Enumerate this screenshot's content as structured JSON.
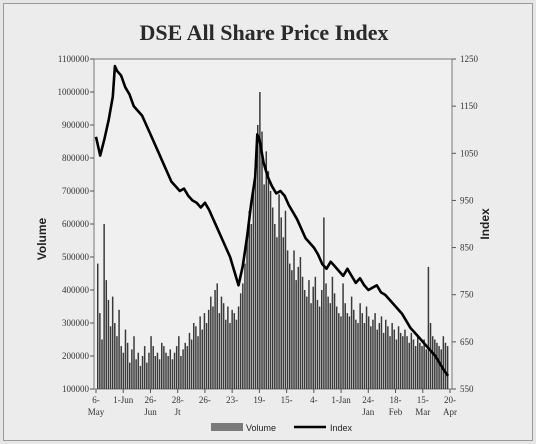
{
  "chart_data": {
    "type": "bar+line",
    "title": "DSE All Share Price Index",
    "ylabel_left": "Volume",
    "ylabel_right": "Index",
    "y_left_ticks": [
      "1100000",
      "1000000",
      "900000",
      "800000",
      "700000",
      "600000",
      "500000",
      "400000",
      "300000",
      "200000",
      "100000"
    ],
    "y_right_ticks": [
      "1250",
      "1150",
      "1050",
      "950",
      "850",
      "750",
      "650",
      "550"
    ],
    "ylim_left": [
      100000,
      1100000
    ],
    "ylim_right": [
      550,
      1250
    ],
    "x_tick_top": [
      "6-",
      "1-Jun",
      "26-",
      "28-",
      "26-",
      "23-",
      "19-",
      "15-",
      "4-",
      "1-Jan",
      "24-",
      "18-",
      "15-",
      "20-"
    ],
    "x_tick_bottom": [
      "May",
      "",
      "Jun",
      "Jt",
      "",
      "",
      "",
      "",
      "",
      "",
      "Jan",
      "Feb",
      "Mar",
      "Apr"
    ],
    "legend": [
      "Volume",
      "Index"
    ],
    "colors": {
      "volume": "#3a3a3a",
      "index": "#000000"
    },
    "index_series": [
      [
        0,
        1085
      ],
      [
        2,
        1045
      ],
      [
        4,
        1080
      ],
      [
        6,
        1120
      ],
      [
        8,
        1170
      ],
      [
        9,
        1235
      ],
      [
        10,
        1225
      ],
      [
        12,
        1215
      ],
      [
        14,
        1190
      ],
      [
        16,
        1175
      ],
      [
        18,
        1150
      ],
      [
        20,
        1140
      ],
      [
        22,
        1130
      ],
      [
        24,
        1110
      ],
      [
        26,
        1090
      ],
      [
        28,
        1070
      ],
      [
        30,
        1050
      ],
      [
        32,
        1030
      ],
      [
        34,
        1010
      ],
      [
        36,
        990
      ],
      [
        38,
        980
      ],
      [
        40,
        970
      ],
      [
        42,
        975
      ],
      [
        44,
        960
      ],
      [
        46,
        950
      ],
      [
        48,
        945
      ],
      [
        50,
        935
      ],
      [
        52,
        945
      ],
      [
        54,
        930
      ],
      [
        56,
        910
      ],
      [
        58,
        890
      ],
      [
        60,
        870
      ],
      [
        62,
        850
      ],
      [
        64,
        830
      ],
      [
        66,
        800
      ],
      [
        68,
        770
      ],
      [
        70,
        810
      ],
      [
        72,
        870
      ],
      [
        74,
        940
      ],
      [
        76,
        1000
      ],
      [
        77,
        1090
      ],
      [
        78,
        1080
      ],
      [
        80,
        1030
      ],
      [
        82,
        1000
      ],
      [
        84,
        980
      ],
      [
        86,
        965
      ],
      [
        88,
        970
      ],
      [
        90,
        960
      ],
      [
        92,
        940
      ],
      [
        94,
        925
      ],
      [
        96,
        910
      ],
      [
        98,
        890
      ],
      [
        100,
        870
      ],
      [
        102,
        860
      ],
      [
        104,
        850
      ],
      [
        106,
        835
      ],
      [
        108,
        815
      ],
      [
        110,
        805
      ],
      [
        112,
        820
      ],
      [
        114,
        810
      ],
      [
        116,
        800
      ],
      [
        118,
        790
      ],
      [
        120,
        805
      ],
      [
        122,
        790
      ],
      [
        124,
        775
      ],
      [
        126,
        785
      ],
      [
        128,
        770
      ],
      [
        130,
        760
      ],
      [
        132,
        765
      ],
      [
        134,
        770
      ],
      [
        136,
        755
      ],
      [
        138,
        750
      ],
      [
        140,
        740
      ],
      [
        142,
        730
      ],
      [
        144,
        720
      ],
      [
        146,
        710
      ],
      [
        148,
        695
      ],
      [
        150,
        680
      ],
      [
        152,
        670
      ],
      [
        154,
        660
      ],
      [
        156,
        650
      ],
      [
        158,
        640
      ],
      [
        160,
        630
      ],
      [
        162,
        620
      ],
      [
        164,
        605
      ],
      [
        166,
        590
      ],
      [
        168,
        578
      ]
    ],
    "volume_series": [
      480000,
      330000,
      250000,
      600000,
      430000,
      370000,
      290000,
      380000,
      300000,
      260000,
      340000,
      230000,
      210000,
      280000,
      240000,
      180000,
      220000,
      260000,
      190000,
      210000,
      170000,
      200000,
      230000,
      180000,
      210000,
      260000,
      230000,
      200000,
      210000,
      190000,
      240000,
      230000,
      210000,
      200000,
      220000,
      190000,
      210000,
      230000,
      260000,
      200000,
      220000,
      240000,
      230000,
      270000,
      250000,
      300000,
      290000,
      260000,
      320000,
      280000,
      330000,
      300000,
      340000,
      380000,
      350000,
      400000,
      420000,
      330000,
      380000,
      360000,
      310000,
      350000,
      300000,
      340000,
      330000,
      310000,
      350000,
      390000,
      420000,
      480000,
      560000,
      640000,
      600000,
      700000,
      780000,
      900000,
      1000000,
      880000,
      720000,
      820000,
      760000,
      700000,
      650000,
      600000,
      560000,
      690000,
      620000,
      560000,
      640000,
      520000,
      480000,
      460000,
      520000,
      430000,
      470000,
      500000,
      440000,
      400000,
      380000,
      430000,
      360000,
      410000,
      440000,
      370000,
      350000,
      400000,
      620000,
      420000,
      380000,
      360000,
      440000,
      390000,
      350000,
      330000,
      320000,
      420000,
      360000,
      330000,
      320000,
      380000,
      340000,
      310000,
      300000,
      360000,
      330000,
      300000,
      350000,
      320000,
      290000,
      310000,
      330000,
      280000,
      300000,
      320000,
      270000,
      310000,
      290000,
      260000,
      300000,
      280000,
      250000,
      290000,
      270000,
      260000,
      280000,
      260000,
      240000,
      270000,
      250000,
      230000,
      260000,
      240000,
      230000,
      250000,
      220000,
      470000,
      300000,
      260000,
      250000,
      240000,
      230000,
      220000,
      260000,
      240000,
      230000
    ]
  }
}
